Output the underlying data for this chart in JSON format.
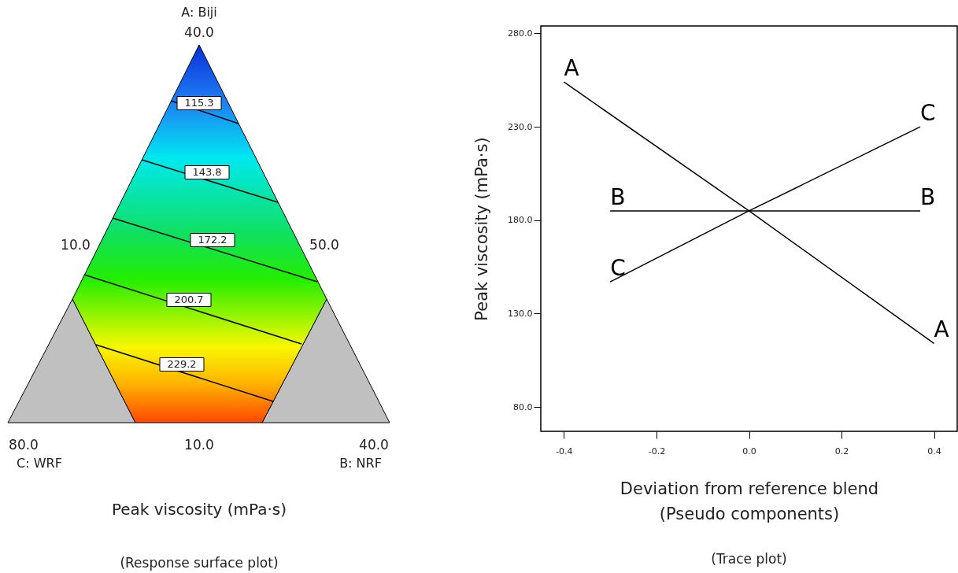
{
  "chart_data": [
    {
      "type": "other",
      "xlabel": "Peak viscosity (mPa·s)",
      "annotations": [
        "A: Biji",
        "40.0",
        "10.0",
        "50.0",
        "80.0",
        "C: WRF",
        "10.0",
        "40.0",
        "B: NRF",
        "115.3",
        "143.8",
        "172.2",
        "200.7",
        "229.2",
        "(Response surface plot)"
      ]
    },
    {
      "type": "line",
      "xlabel": "Deviation from reference blend\n(Pseudo components)",
      "ylabel": "Peak viscosity (mPa·s)",
      "series": [
        {
          "name": "A",
          "color": "#000000",
          "x": [
            -0.4,
            0,
            0.4
          ],
          "values": [
            254,
            185,
            114
          ]
        },
        {
          "name": "B",
          "color": "#000000",
          "x": [
            -0.3,
            0,
            0.37
          ],
          "values": [
            185,
            185,
            185
          ]
        },
        {
          "name": "C",
          "color": "#000000",
          "x": [
            -0.3,
            0,
            0.37
          ],
          "values": [
            147,
            185,
            230
          ]
        }
      ],
      "xlim": [
        -0.45,
        0.45
      ],
      "xticks": [
        -0.4,
        -0.2,
        {
          "value": 0,
          "label": "0.0"
        },
        0.2,
        0.4
      ],
      "ylim": [
        67,
        284
      ],
      "yticks": [
        {
          "value": 80,
          "label": "80.0"
        },
        {
          "value": 130,
          "label": "130.0"
        },
        {
          "value": 180,
          "label": "180.0"
        },
        {
          "value": 230,
          "label": "230.0"
        },
        {
          "value": 280,
          "label": "280.0"
        }
      ],
      "marker": "none",
      "grid": false,
      "legend": false,
      "annotations": [
        "(Trace plot)"
      ]
    }
  ]
}
